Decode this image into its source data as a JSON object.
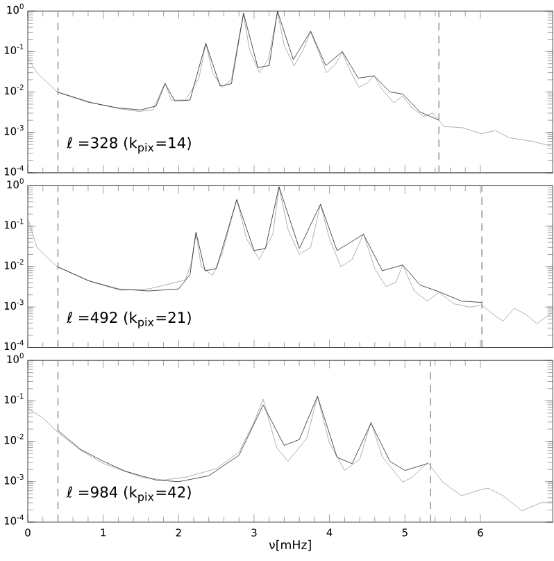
{
  "chart_data": [
    {
      "type": "line",
      "log": "y",
      "tick_labels": "y",
      "xlim": [
        0,
        6.96
      ],
      "ylim": [
        0.0001,
        1
      ],
      "xticks": [
        0,
        1,
        2,
        3,
        4,
        5,
        6
      ],
      "yticks": [
        {
          "value": 0.0001,
          "label": "10$^{-4}$"
        },
        {
          "value": 0.001,
          "label": "10$^{-3}$"
        },
        {
          "value": 0.01,
          "label": "10$^{-2}$"
        },
        {
          "value": 0.1,
          "label": "10$^{-1}$"
        },
        {
          "value": 1,
          "label": "10$^{0}$"
        }
      ],
      "series": [
        {
          "color": "#9a9a9a",
          "x": [
            0,
            0.12,
            0.39,
            0.86,
            1.23,
            1.47,
            1.66,
            1.82,
            1.9,
            2.09,
            2.27,
            2.36,
            2.45,
            2.58,
            2.7,
            2.79,
            2.86,
            2.94,
            3.07,
            3.19,
            3.31,
            3.4,
            3.53,
            3.65,
            3.75,
            3.87,
            3.96,
            4.08,
            4.17,
            4.26,
            4.39,
            4.51,
            4.59,
            4.69,
            4.85,
            4.97,
            5.09,
            5.25,
            5.37,
            5.52,
            5.77,
            6.01,
            6.2,
            6.38,
            6.69,
            6.96
          ],
          "values": [
            0.072,
            0.03,
            0.01,
            0.0054,
            0.0038,
            0.0033,
            0.0036,
            0.017,
            0.0063,
            0.0063,
            0.022,
            0.16,
            0.03,
            0.013,
            0.02,
            0.18,
            0.83,
            0.11,
            0.03,
            0.065,
            0.95,
            0.14,
            0.044,
            0.11,
            0.31,
            0.083,
            0.03,
            0.049,
            0.095,
            0.038,
            0.013,
            0.017,
            0.026,
            0.012,
            0.0054,
            0.0079,
            0.0041,
            0.0025,
            0.003,
            0.0014,
            0.0013,
            0.00093,
            0.0011,
            0.00074,
            0.0006,
            0.00045
          ]
        },
        {
          "color": "#222222",
          "x": [
            0.39,
            0.8,
            1.2,
            1.5,
            1.7,
            1.82,
            1.95,
            2.15,
            2.36,
            2.55,
            2.7,
            2.86,
            3.05,
            3.2,
            3.31,
            3.52,
            3.75,
            3.95,
            4.17,
            4.38,
            4.59,
            4.8,
            4.97,
            5.2,
            5.45
          ],
          "values": [
            0.01,
            0.0056,
            0.004,
            0.0036,
            0.0045,
            0.016,
            0.006,
            0.0063,
            0.16,
            0.014,
            0.016,
            0.89,
            0.04,
            0.045,
            1.0,
            0.063,
            0.32,
            0.045,
            0.1,
            0.022,
            0.025,
            0.01,
            0.0089,
            0.0032,
            0.002
          ]
        }
      ],
      "ref_lines": [
        {
          "axis": "x",
          "value": 0.4,
          "color": "#9a9a9a",
          "line_style": "dashed"
        },
        {
          "axis": "x",
          "value": 5.45,
          "color": "#9a9a9a",
          "line_style": "dashed"
        }
      ],
      "annotations": [
        "ℓ =328 (k$_{pix}$=14)"
      ]
    },
    {
      "type": "line",
      "log": "y",
      "tick_labels": "y",
      "xlim": [
        0,
        6.96
      ],
      "ylim": [
        0.0001,
        1
      ],
      "xticks": [
        0,
        1,
        2,
        3,
        4,
        5,
        6
      ],
      "yticks": [
        {
          "value": 0.0001,
          "label": "10$^{-4}$"
        },
        {
          "value": 0.001,
          "label": "10$^{-3}$"
        },
        {
          "value": 0.01,
          "label": "10$^{-2}$"
        },
        {
          "value": 0.1,
          "label": "10$^{-1}$"
        },
        {
          "value": 1,
          "label": "10$^{0}$"
        }
      ],
      "series": [
        {
          "color": "#9a9a9a",
          "x": [
            0,
            0.12,
            0.39,
            0.86,
            1.23,
            1.6,
            1.9,
            2.09,
            2.17,
            2.23,
            2.3,
            2.45,
            2.58,
            2.77,
            2.9,
            3.07,
            3.25,
            3.33,
            3.45,
            3.6,
            3.75,
            3.88,
            4.0,
            4.15,
            4.3,
            4.45,
            4.6,
            4.75,
            4.88,
            4.97,
            5.12,
            5.3,
            5.45,
            5.65,
            5.85,
            6.02,
            6.2,
            6.3,
            6.45,
            6.6,
            6.75,
            6.96
          ],
          "values": [
            0.16,
            0.03,
            0.01,
            0.0041,
            0.0026,
            0.0028,
            0.0038,
            0.0047,
            0.013,
            0.068,
            0.01,
            0.006,
            0.022,
            0.46,
            0.049,
            0.015,
            0.065,
            0.93,
            0.083,
            0.02,
            0.03,
            0.35,
            0.049,
            0.01,
            0.015,
            0.065,
            0.0089,
            0.0032,
            0.0041,
            0.011,
            0.0025,
            0.0014,
            0.0023,
            0.0012,
            0.001,
            0.0011,
            0.0006,
            0.00045,
            0.00093,
            0.00066,
            0.00039,
            0.00074
          ]
        },
        {
          "color": "#222222",
          "x": [
            0.39,
            0.8,
            1.2,
            1.6,
            2.0,
            2.15,
            2.23,
            2.35,
            2.5,
            2.77,
            3.0,
            3.15,
            3.33,
            3.6,
            3.88,
            4.1,
            4.45,
            4.7,
            4.97,
            5.2,
            5.45,
            5.75,
            6.02
          ],
          "values": [
            0.01,
            0.0045,
            0.0028,
            0.0025,
            0.0028,
            0.0063,
            0.071,
            0.0079,
            0.0089,
            0.45,
            0.025,
            0.028,
            0.95,
            0.028,
            0.35,
            0.025,
            0.063,
            0.0079,
            0.011,
            0.0035,
            0.0024,
            0.0014,
            0.0013
          ]
        }
      ],
      "ref_lines": [
        {
          "axis": "x",
          "value": 0.4,
          "color": "#9a9a9a",
          "line_style": "dashed"
        },
        {
          "axis": "x",
          "value": 6.02,
          "color": "#9a9a9a",
          "line_style": "dashed"
        }
      ],
      "annotations": [
        "ℓ =492 (k$_{pix}$=21)"
      ]
    },
    {
      "type": "line",
      "log": "y",
      "xlabel": "ν[mHz]",
      "xlim": [
        0,
        6.96
      ],
      "ylim": [
        0.0001,
        1
      ],
      "xticks": [
        0,
        1,
        2,
        3,
        4,
        5,
        6
      ],
      "yticks": [
        {
          "value": 0.0001,
          "label": "10$^{-4}$"
        },
        {
          "value": 0.001,
          "label": "10$^{-3}$"
        },
        {
          "value": 0.01,
          "label": "10$^{-2}$"
        },
        {
          "value": 0.1,
          "label": "10$^{-1}$"
        },
        {
          "value": 1,
          "label": "10$^{0}$"
        }
      ],
      "series": [
        {
          "color": "#9a9a9a",
          "x": [
            0,
            0.2,
            0.39,
            0.7,
            1.0,
            1.5,
            1.8,
            2.1,
            2.5,
            2.8,
            3.0,
            3.12,
            3.3,
            3.45,
            3.7,
            3.84,
            4.0,
            4.2,
            4.4,
            4.55,
            4.7,
            4.97,
            5.1,
            5.3,
            5.5,
            5.75,
            6.0,
            6.1,
            6.3,
            6.55,
            6.8,
            6.96
          ],
          "values": [
            0.065,
            0.038,
            0.017,
            0.006,
            0.0028,
            0.0013,
            0.0011,
            0.0013,
            0.0021,
            0.0054,
            0.03,
            0.11,
            0.0069,
            0.0032,
            0.012,
            0.13,
            0.0089,
            0.0019,
            0.0036,
            0.03,
            0.0041,
            0.00098,
            0.0013,
            0.003,
            0.00098,
            0.00045,
            0.00063,
            0.00069,
            0.00045,
            0.00019,
            0.0003,
            0.00032
          ]
        },
        {
          "color": "#222222",
          "x": [
            0.39,
            0.7,
            1.0,
            1.3,
            1.7,
            2.0,
            2.4,
            2.8,
            3.12,
            3.4,
            3.6,
            3.84,
            4.1,
            4.3,
            4.55,
            4.8,
            5.0,
            5.3
          ],
          "values": [
            0.019,
            0.0063,
            0.0032,
            0.0018,
            0.0011,
            0.001,
            0.0014,
            0.0045,
            0.079,
            0.0079,
            0.011,
            0.13,
            0.004,
            0.0028,
            0.028,
            0.0032,
            0.0019,
            0.0028
          ]
        }
      ],
      "ref_lines": [
        {
          "axis": "x",
          "value": 0.4,
          "color": "#9a9a9a",
          "line_style": "dashed"
        },
        {
          "axis": "x",
          "value": 5.34,
          "color": "#9a9a9a",
          "line_style": "dashed"
        }
      ],
      "annotations": [
        "ℓ =984 (k$_{pix}$=42)"
      ]
    }
  ]
}
